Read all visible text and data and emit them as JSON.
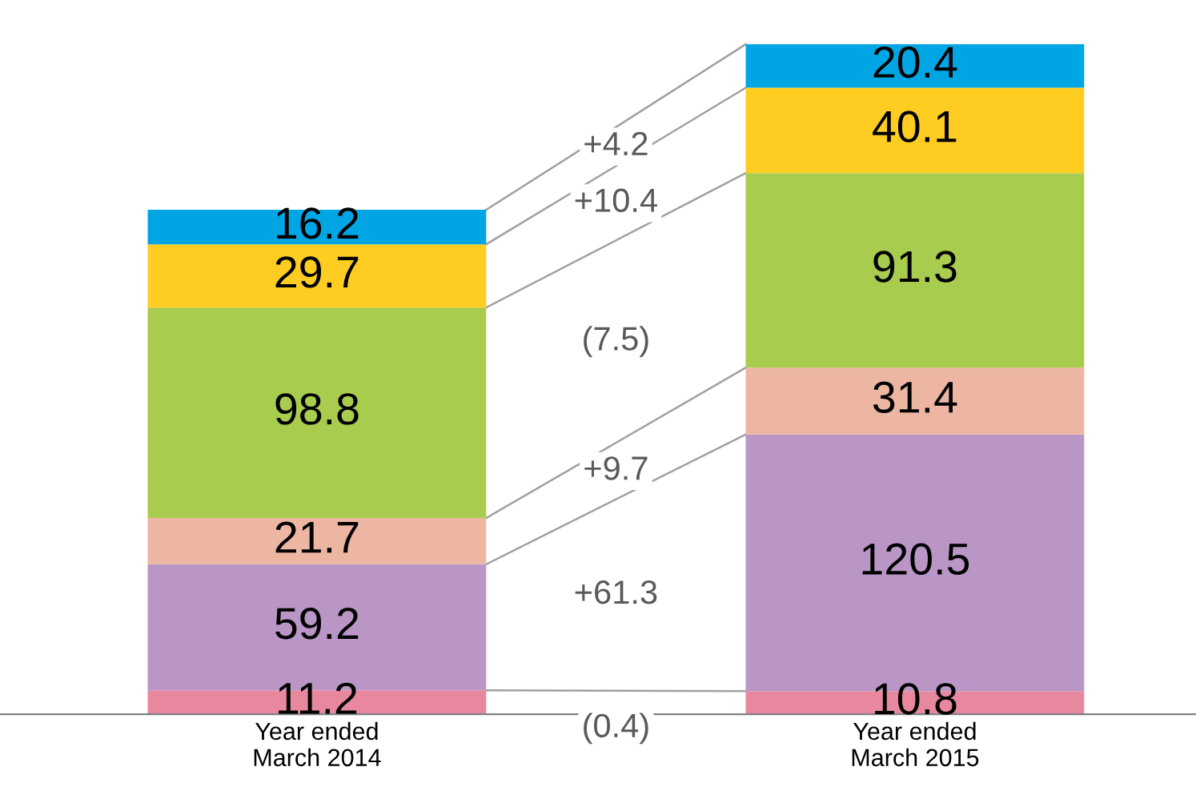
{
  "chart_data": {
    "type": "bar",
    "stacked": true,
    "data_labels": true,
    "categories": [
      "Year ended\nMarch 2014",
      "Year ended\nMarch 2015"
    ],
    "series": [
      {
        "color": "#e8889e",
        "values": [
          11.2,
          10.8
        ]
      },
      {
        "color": "#b996c6",
        "values": [
          59.2,
          120.5
        ]
      },
      {
        "color": "#ecb6a2",
        "values": [
          21.7,
          31.4
        ]
      },
      {
        "color": "#a8cc4e",
        "values": [
          98.8,
          91.3
        ]
      },
      {
        "color": "#ffcc22",
        "values": [
          29.7,
          40.1
        ]
      },
      {
        "color": "#00a6e4",
        "values": [
          16.2,
          20.4
        ]
      }
    ],
    "annotations": [
      "(0.4)",
      "+61.3",
      "+9.7",
      "(7.5)",
      "+10.4",
      "+4.2"
    ],
    "legend": false,
    "grid": false
  }
}
